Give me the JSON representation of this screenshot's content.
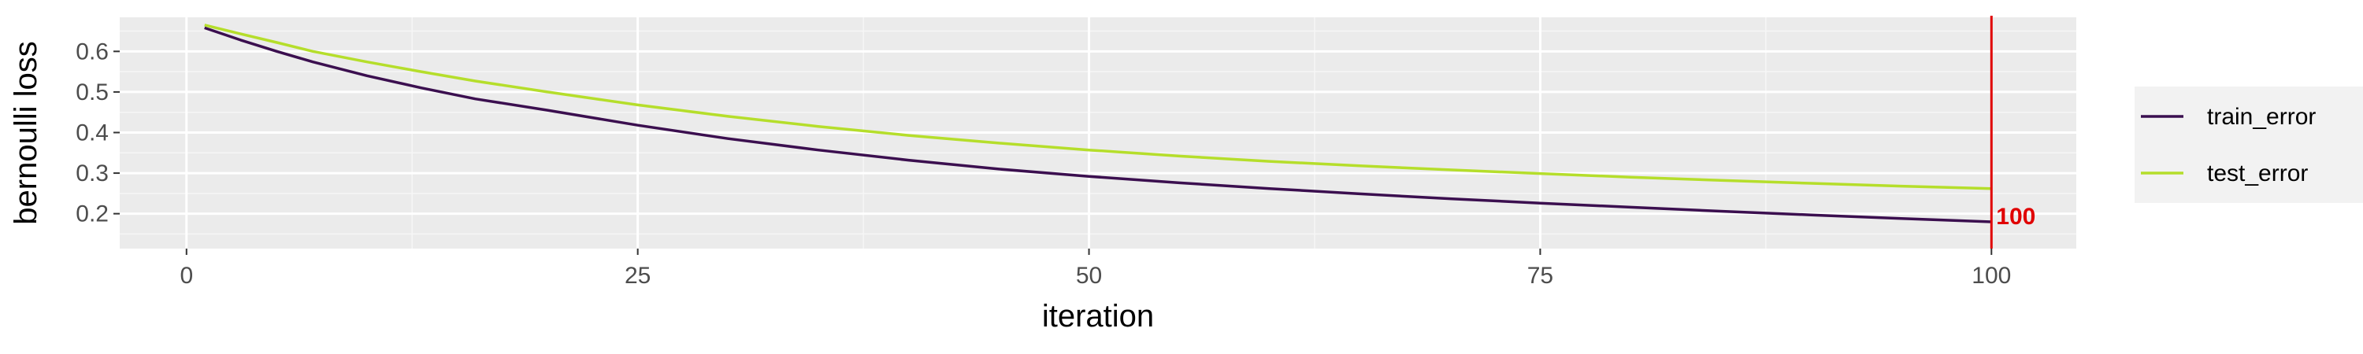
{
  "chart_data": {
    "type": "line",
    "xlabel": "iteration",
    "ylabel": "bernoulli loss",
    "xlim": [
      -3.7,
      104.7
    ],
    "ylim": [
      0.114,
      0.684
    ],
    "xticks": [
      0,
      25,
      50,
      75,
      100
    ],
    "xtick_labels": [
      "0",
      "25",
      "50",
      "75",
      "100"
    ],
    "yticks": [
      0.2,
      0.3,
      0.4,
      0.5,
      0.6
    ],
    "ytick_labels": [
      "0.2",
      "0.3",
      "0.4",
      "0.5",
      "0.6"
    ],
    "grid": true,
    "legend_position": "right",
    "background": "#ebebeb",
    "vline": {
      "x": 100,
      "label": "100",
      "color": "#e00000"
    },
    "series": [
      {
        "name": "train_error",
        "color": "#3b0f4f",
        "x": [
          1,
          3,
          5,
          7,
          10,
          13,
          16,
          20,
          25,
          30,
          35,
          40,
          45,
          50,
          55,
          60,
          65,
          70,
          75,
          80,
          85,
          90,
          95,
          100
        ],
        "y": [
          0.658,
          0.628,
          0.6,
          0.574,
          0.54,
          0.51,
          0.483,
          0.455,
          0.418,
          0.385,
          0.357,
          0.332,
          0.31,
          0.292,
          0.276,
          0.262,
          0.249,
          0.237,
          0.226,
          0.216,
          0.206,
          0.197,
          0.188,
          0.18
        ]
      },
      {
        "name": "test_error",
        "color": "#b5de2b",
        "x": [
          1,
          3,
          5,
          7,
          10,
          13,
          16,
          20,
          25,
          30,
          35,
          40,
          45,
          50,
          55,
          60,
          65,
          70,
          75,
          80,
          85,
          90,
          95,
          100
        ],
        "y": [
          0.665,
          0.643,
          0.622,
          0.6,
          0.574,
          0.55,
          0.527,
          0.5,
          0.468,
          0.44,
          0.415,
          0.393,
          0.374,
          0.357,
          0.342,
          0.329,
          0.318,
          0.308,
          0.299,
          0.29,
          0.282,
          0.275,
          0.268,
          0.262
        ]
      }
    ]
  }
}
